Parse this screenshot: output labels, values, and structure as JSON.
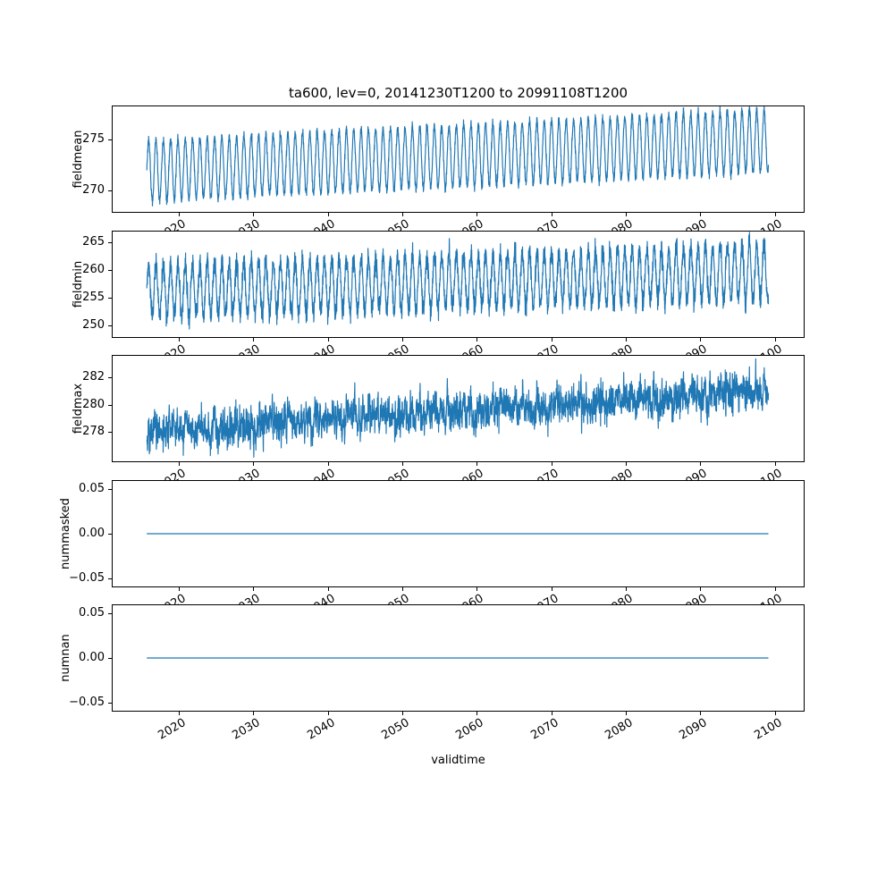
{
  "chart_data": {
    "type": "line",
    "title": "ta600, lev=0, 20141230T1200 to 20991108T1200",
    "xlabel": "validtime",
    "line_color": "#1f77b4",
    "x_start": 2015.0,
    "x_end": 2099.86,
    "points_per_year": 52,
    "xlim": [
      2011,
      2104
    ],
    "xticks": [
      2020,
      2030,
      2040,
      2050,
      2060,
      2070,
      2080,
      2090,
      2100
    ],
    "xtick_labels": [
      "2020",
      "2030",
      "2040",
      "2050",
      "2060",
      "2070",
      "2080",
      "2090",
      "2100"
    ],
    "xtick_rotation_deg": 30,
    "grid": false,
    "legend": false,
    "subplots": [
      {
        "ylabel": "fieldmean",
        "ylim": [
          267.8,
          278.35
        ],
        "ytick_values": [
          270,
          275
        ],
        "ytick_labels": [
          "270",
          "275"
        ],
        "model": {
          "kind": "seasonal",
          "base_start": 271.9,
          "base_end": 274.9,
          "amp_start": 3.0,
          "amp_end": 3.1,
          "noise": 0.22,
          "seed": 11
        }
      },
      {
        "ylabel": "fieldmin",
        "ylim": [
          247.8,
          267.2
        ],
        "ytick_values": [
          250,
          255,
          260,
          265
        ],
        "ytick_labels": [
          "250",
          "255",
          "260",
          "265"
        ],
        "model": {
          "kind": "seasonal",
          "base_start": 256.2,
          "base_end": 259.8,
          "amp_start": 4.7,
          "amp_end": 5.0,
          "noise": 0.95,
          "seed": 22
        }
      },
      {
        "ylabel": "fieldmax",
        "ylim": [
          275.8,
          283.6
        ],
        "ytick_values": [
          278,
          280,
          282
        ],
        "ytick_labels": [
          "278",
          "280",
          "282"
        ],
        "model": {
          "kind": "ar_trend",
          "base_start": 278.0,
          "base_end": 281.0,
          "amp_start": 0.2,
          "amp_end": 0.25,
          "ar": 0.6,
          "noise": 0.55,
          "seed": 33
        }
      },
      {
        "ylabel": "nummasked",
        "ylim": [
          -0.06,
          0.06
        ],
        "ytick_values": [
          -0.05,
          0,
          0.05
        ],
        "ytick_labels": [
          "−0.05",
          "0.00",
          "0.05"
        ],
        "model": {
          "kind": "constant",
          "value": 0,
          "seed": 44
        }
      },
      {
        "ylabel": "numnan",
        "ylim": [
          -0.06,
          0.06
        ],
        "ytick_values": [
          -0.05,
          0,
          0.05
        ],
        "ytick_labels": [
          "−0.05",
          "0.00",
          "0.05"
        ],
        "model": {
          "kind": "constant",
          "value": 0,
          "seed": 55
        }
      }
    ]
  }
}
